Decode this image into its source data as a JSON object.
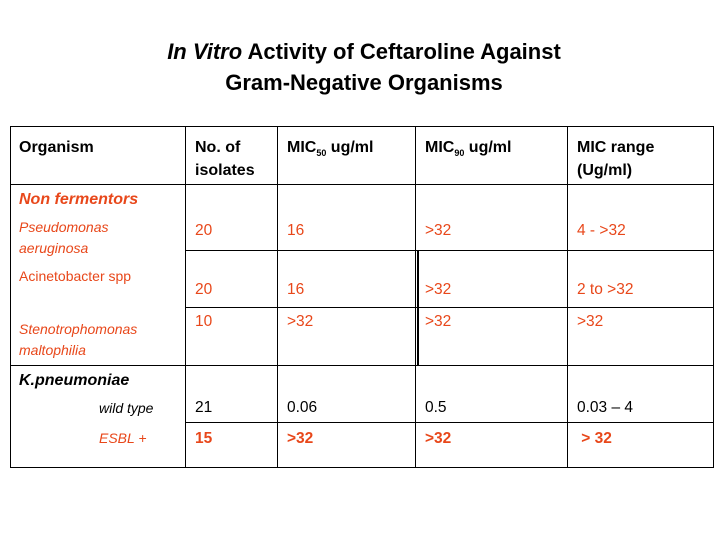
{
  "title": {
    "italic_part": "In Vitro",
    "rest_line1": "Activity of Ceftaroline Against",
    "line2": "Gram-Negative Organisms"
  },
  "headers": {
    "organism": "Organism",
    "isolates_line1": "No. of",
    "isolates_line2": "isolates",
    "mic50_prefix": "MIC",
    "mic50_sub": "50",
    "mic50_suffix": " ug/ml",
    "mic90_prefix": "MIC",
    "mic90_sub": "90",
    "mic90_suffix": " ug/ml",
    "range_line1": "MIC range",
    "range_line2": "(Ug/ml)"
  },
  "groups": {
    "non_fermentors": "Non fermentors",
    "kpneumoniae": "K.pneumoniae"
  },
  "rows": [
    {
      "org_line1": "Pseudomonas",
      "org_line2": "aeruginosa",
      "isolates": "20",
      "mic50": "16",
      "mic90": ">32",
      "range": "4 - >32"
    },
    {
      "org_line1": "Acinetobacter spp",
      "isolates": "20",
      "mic50": "16",
      "mic90": ">32",
      "range": "2 to >32"
    },
    {
      "org_line1": "Stenotrophomonas",
      "org_line2": "maltophilia",
      "isolates": "10",
      "mic50": ">32",
      "mic90": ">32",
      "range": ">32"
    },
    {
      "org_line1": "wild type",
      "isolates": "21",
      "mic50": "0.06",
      "mic90": "0.5",
      "range": "0.03 – 4"
    },
    {
      "org_line1": "ESBL +",
      "isolates": "15",
      "mic50": ">32",
      "mic90": ">32",
      "range": " > 32"
    }
  ],
  "colors": {
    "accent": "#e8471a",
    "text": "#000000",
    "border": "#000000"
  }
}
